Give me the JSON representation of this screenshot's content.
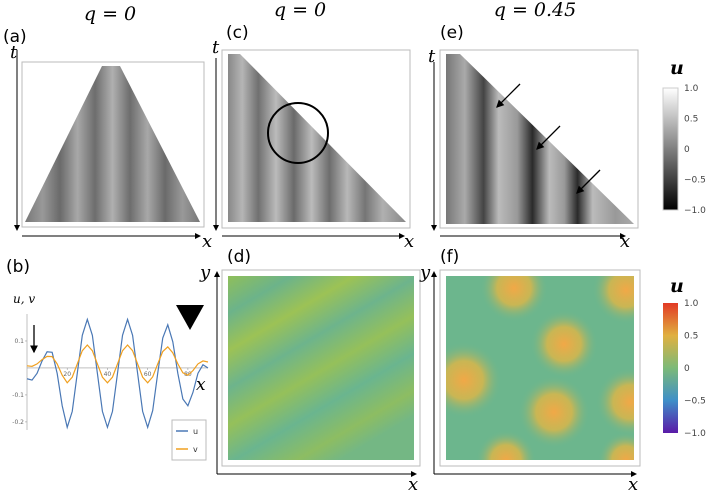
{
  "titles": [
    "q = 0",
    "q = 0",
    "q = 0.45"
  ],
  "panel_labels": {
    "a": "(a)",
    "b": "(b)",
    "c": "(c)",
    "d": "(d)",
    "e": "(e)",
    "f": "(f)"
  },
  "axis_labels": {
    "t": "t",
    "x": "x",
    "y": "y"
  },
  "colorbars": [
    {
      "label": "u",
      "ticks": [
        "1.0",
        "0.5",
        "0",
        "−0.5",
        "−1.0"
      ]
    },
    {
      "label": "u",
      "ticks": [
        "1.0",
        "0.5",
        "0",
        "−0.5",
        "−1.0"
      ]
    }
  ],
  "line_plot": {
    "type": "line",
    "ylabel": "u, v",
    "xlabel": "x",
    "xlim": [
      0,
      90
    ],
    "ylim": [
      -0.23,
      0.2
    ],
    "xticks": [
      20,
      40,
      60,
      80
    ],
    "yticks": [
      0.1,
      -0.1,
      -0.2
    ],
    "x": [
      0,
      2.5,
      5,
      7.5,
      10,
      12.5,
      15,
      17.5,
      20,
      22.5,
      25,
      27.5,
      30,
      32.5,
      35,
      37.5,
      40,
      42.5,
      45,
      47.5,
      50,
      52.5,
      55,
      57.5,
      60,
      62.5,
      65,
      67.5,
      70,
      72.5,
      75,
      77.5,
      80,
      82.5,
      85,
      87.5,
      90
    ],
    "series": [
      {
        "name": "u",
        "color": "#4a78b5",
        "values": [
          -0.04,
          -0.045,
          -0.02,
          0.026,
          0.06,
          0.058,
          -0.02,
          -0.14,
          -0.22,
          -0.161,
          -0.02,
          0.121,
          0.18,
          0.121,
          -0.02,
          -0.161,
          -0.22,
          -0.161,
          -0.02,
          0.121,
          0.18,
          0.121,
          -0.02,
          -0.161,
          -0.22,
          -0.158,
          -0.02,
          0.111,
          0.16,
          0.097,
          -0.02,
          -0.115,
          -0.14,
          -0.091,
          -0.02,
          0.012,
          0.0
        ]
      },
      {
        "name": "v",
        "color": "#f0a020",
        "values": [
          0.008,
          0.006,
          0.015,
          0.031,
          0.043,
          0.042,
          0.015,
          -0.027,
          -0.055,
          -0.034,
          0.015,
          0.064,
          0.085,
          0.064,
          0.015,
          -0.034,
          -0.055,
          -0.034,
          0.015,
          0.064,
          0.085,
          0.064,
          0.015,
          -0.034,
          -0.055,
          -0.033,
          0.015,
          0.061,
          0.078,
          0.056,
          0.015,
          -0.018,
          -0.027,
          -0.01,
          0.015,
          0.026,
          0.022
        ]
      }
    ]
  }
}
